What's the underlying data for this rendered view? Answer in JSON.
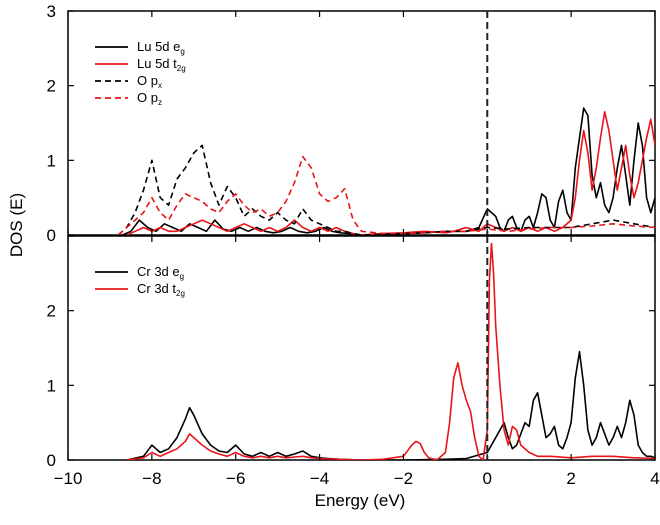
{
  "chart_data": {
    "type": "line",
    "xlabel": "Energy (eV)",
    "ylabel": "DOS (E)",
    "xlim": [
      -10,
      4
    ],
    "x_ticks": [
      "−10",
      "−8",
      "−6",
      "−4",
      "−2",
      "0",
      "2",
      "4"
    ],
    "fermi_level": 0,
    "grid": false,
    "panels": [
      {
        "name": "top",
        "ylim": [
          0,
          3
        ],
        "y_ticks": [
          "0",
          "1",
          "2",
          "3"
        ],
        "legend_position": "top-left",
        "series": [
          {
            "label_base": "Lu 5d e",
            "label_sub": "g",
            "color": "#000000",
            "dash": "solid",
            "x": [
              -8.7,
              -8.5,
              -8.3,
              -8.1,
              -7.9,
              -7.7,
              -7.5,
              -7.3,
              -7.1,
              -6.9,
              -6.7,
              -6.5,
              -6.3,
              -6.1,
              -5.9,
              -5.7,
              -5.5,
              -5.3,
              -5.1,
              -4.9,
              -4.7,
              -4.5,
              -4.3,
              -4.1,
              -3.9,
              -3.7,
              -3.5,
              -3.3,
              -3.1,
              -2.5,
              -2.0,
              -1.5,
              -1.0,
              -0.5,
              -0.2,
              0.0,
              0.1,
              0.2,
              0.3,
              0.4,
              0.5,
              0.6,
              0.7,
              0.8,
              0.9,
              1.0,
              1.1,
              1.2,
              1.3,
              1.4,
              1.5,
              1.6,
              1.7,
              1.8,
              1.9,
              2.0,
              2.1,
              2.2,
              2.3,
              2.4,
              2.5,
              2.6,
              2.7,
              2.8,
              2.9,
              3.0,
              3.1,
              3.2,
              3.3,
              3.4,
              3.5,
              3.6,
              3.7,
              3.8,
              3.9,
              4.0
            ],
            "y": [
              0.0,
              0.05,
              0.2,
              0.1,
              0.05,
              0.15,
              0.1,
              0.05,
              0.15,
              0.1,
              0.05,
              0.2,
              0.08,
              0.05,
              0.1,
              0.05,
              0.1,
              0.05,
              0.03,
              0.05,
              0.1,
              0.05,
              0.03,
              0.05,
              0.1,
              0.05,
              0.03,
              0.02,
              0.0,
              0.01,
              0.02,
              0.03,
              0.05,
              0.05,
              0.1,
              0.35,
              0.3,
              0.25,
              0.1,
              0.05,
              0.2,
              0.25,
              0.1,
              0.05,
              0.2,
              0.25,
              0.1,
              0.3,
              0.55,
              0.5,
              0.2,
              0.1,
              0.45,
              0.6,
              0.3,
              0.2,
              0.9,
              1.3,
              1.7,
              1.6,
              0.8,
              0.5,
              0.7,
              0.4,
              0.3,
              0.5,
              0.9,
              1.2,
              0.8,
              0.4,
              1.0,
              1.5,
              1.2,
              0.5,
              0.3,
              0.5
            ]
          },
          {
            "label_base": "Lu 5d t",
            "label_sub": "2g",
            "color": "#e8141a",
            "dash": "solid",
            "x": [
              -8.6,
              -8.4,
              -8.2,
              -8.0,
              -7.8,
              -7.6,
              -7.4,
              -7.2,
              -7.0,
              -6.8,
              -6.6,
              -6.4,
              -6.2,
              -6.0,
              -5.8,
              -5.6,
              -5.4,
              -5.2,
              -5.0,
              -4.8,
              -4.6,
              -4.4,
              -4.2,
              -4.0,
              -3.8,
              -3.6,
              -3.4,
              -3.2,
              -3.0,
              -2.5,
              -2.0,
              -1.5,
              -1.0,
              -0.8,
              -0.5,
              -0.2,
              0.0,
              0.2,
              0.4,
              0.6,
              0.8,
              1.0,
              1.2,
              1.4,
              1.6,
              1.8,
              2.0,
              2.1,
              2.2,
              2.3,
              2.4,
              2.5,
              2.6,
              2.7,
              2.8,
              2.9,
              3.0,
              3.1,
              3.2,
              3.3,
              3.4,
              3.5,
              3.6,
              3.7,
              3.8,
              3.9,
              4.0
            ],
            "y": [
              0.0,
              0.05,
              0.1,
              0.05,
              0.1,
              0.05,
              0.05,
              0.1,
              0.15,
              0.2,
              0.15,
              0.1,
              0.05,
              0.1,
              0.15,
              0.1,
              0.05,
              0.1,
              0.05,
              0.1,
              0.2,
              0.1,
              0.05,
              0.1,
              0.05,
              0.1,
              0.05,
              0.02,
              0.0,
              0.02,
              0.03,
              0.05,
              0.03,
              0.05,
              0.1,
              0.05,
              0.15,
              0.1,
              0.05,
              0.1,
              0.05,
              0.1,
              0.05,
              0.1,
              0.05,
              0.1,
              0.2,
              0.5,
              1.0,
              1.4,
              1.1,
              0.6,
              0.9,
              1.3,
              1.65,
              1.4,
              1.0,
              0.6,
              0.9,
              1.2,
              0.8,
              0.5,
              0.7,
              1.0,
              1.3,
              1.55,
              1.2
            ]
          },
          {
            "label_base": "O p",
            "label_sub": "x",
            "color": "#000000",
            "dash": "dashed",
            "x": [
              -8.8,
              -8.6,
              -8.4,
              -8.2,
              -8.0,
              -7.8,
              -7.6,
              -7.4,
              -7.2,
              -7.0,
              -6.8,
              -6.6,
              -6.4,
              -6.2,
              -6.0,
              -5.8,
              -5.6,
              -5.4,
              -5.2,
              -5.0,
              -4.8,
              -4.6,
              -4.4,
              -4.2,
              -4.0,
              -3.8,
              -3.6,
              -3.4,
              -3.2,
              -3.0,
              -2.5,
              -2.0,
              -1.5,
              -1.0,
              -0.5,
              0.0,
              0.5,
              1.0,
              1.5,
              2.0,
              2.5,
              3.0,
              3.5,
              4.0
            ],
            "y": [
              0.0,
              0.1,
              0.3,
              0.6,
              1.0,
              0.5,
              0.4,
              0.75,
              0.9,
              1.1,
              1.2,
              0.7,
              0.4,
              0.65,
              0.5,
              0.25,
              0.35,
              0.25,
              0.2,
              0.3,
              0.2,
              0.15,
              0.35,
              0.2,
              0.15,
              0.1,
              0.05,
              0.05,
              0.02,
              0.0,
              0.01,
              0.02,
              0.03,
              0.05,
              0.05,
              0.1,
              0.08,
              0.1,
              0.1,
              0.1,
              0.15,
              0.2,
              0.15,
              0.1
            ]
          },
          {
            "label_base": "O p",
            "label_sub": "z",
            "color": "#e8141a",
            "dash": "dashed",
            "x": [
              -8.8,
              -8.6,
              -8.4,
              -8.2,
              -8.0,
              -7.8,
              -7.6,
              -7.4,
              -7.2,
              -7.0,
              -6.8,
              -6.6,
              -6.4,
              -6.2,
              -6.0,
              -5.8,
              -5.6,
              -5.4,
              -5.2,
              -5.0,
              -4.8,
              -4.6,
              -4.4,
              -4.2,
              -4.0,
              -3.8,
              -3.6,
              -3.4,
              -3.2,
              -3.0,
              -2.5,
              -2.0,
              -1.5,
              -1.0,
              -0.5,
              0.0,
              0.5,
              1.0,
              1.5,
              2.0,
              2.5,
              3.0,
              3.5,
              4.0
            ],
            "y": [
              0.0,
              0.1,
              0.2,
              0.3,
              0.5,
              0.3,
              0.2,
              0.4,
              0.55,
              0.5,
              0.45,
              0.35,
              0.3,
              0.45,
              0.55,
              0.4,
              0.3,
              0.35,
              0.25,
              0.3,
              0.45,
              0.7,
              1.05,
              0.9,
              0.55,
              0.45,
              0.5,
              0.62,
              0.2,
              0.05,
              0.02,
              0.02,
              0.03,
              0.05,
              0.05,
              0.08,
              0.05,
              0.08,
              0.1,
              0.1,
              0.12,
              0.15,
              0.12,
              0.1
            ]
          }
        ]
      },
      {
        "name": "bottom",
        "ylim": [
          0,
          3
        ],
        "y_ticks": [
          "0",
          "1",
          "2",
          "3"
        ],
        "y_ticks_shown": [
          "0",
          "1",
          "2"
        ],
        "legend_position": "top-left",
        "series": [
          {
            "label_base": "Cr 3d e",
            "label_sub": "g",
            "color": "#000000",
            "dash": "solid",
            "x": [
              -8.6,
              -8.2,
              -8.0,
              -7.8,
              -7.6,
              -7.4,
              -7.2,
              -7.1,
              -7.0,
              -6.8,
              -6.6,
              -6.4,
              -6.2,
              -6.0,
              -5.8,
              -5.6,
              -5.4,
              -5.2,
              -5.0,
              -4.8,
              -4.6,
              -4.4,
              -4.2,
              -4.0,
              -3.8,
              -3.5,
              -3.0,
              -2.0,
              -1.0,
              -0.5,
              0.0,
              0.2,
              0.4,
              0.5,
              0.6,
              0.7,
              0.8,
              0.9,
              1.0,
              1.1,
              1.2,
              1.3,
              1.4,
              1.5,
              1.6,
              1.7,
              1.8,
              1.9,
              2.0,
              2.1,
              2.2,
              2.3,
              2.4,
              2.5,
              2.6,
              2.7,
              2.8,
              2.9,
              3.0,
              3.1,
              3.2,
              3.3,
              3.4,
              3.5,
              3.6,
              3.7,
              3.8,
              3.9,
              4.0
            ],
            "y": [
              0.0,
              0.05,
              0.2,
              0.1,
              0.15,
              0.3,
              0.55,
              0.7,
              0.6,
              0.35,
              0.2,
              0.12,
              0.1,
              0.2,
              0.08,
              0.05,
              0.1,
              0.05,
              0.1,
              0.05,
              0.08,
              0.12,
              0.05,
              0.03,
              0.02,
              0.01,
              0.0,
              0.0,
              0.01,
              0.02,
              0.1,
              0.3,
              0.5,
              0.3,
              0.15,
              0.2,
              0.35,
              0.5,
              0.45,
              0.8,
              0.9,
              0.6,
              0.3,
              0.35,
              0.45,
              0.2,
              0.15,
              0.3,
              0.5,
              1.1,
              1.45,
              1.0,
              0.4,
              0.2,
              0.3,
              0.5,
              0.35,
              0.2,
              0.3,
              0.45,
              0.3,
              0.5,
              0.8,
              0.6,
              0.2,
              0.1,
              0.05,
              0.05,
              0.03
            ]
          },
          {
            "label_base": "Cr 3d t",
            "label_sub": "2g",
            "color": "#e8141a",
            "dash": "solid",
            "x": [
              -8.6,
              -8.2,
              -8.0,
              -7.8,
              -7.6,
              -7.4,
              -7.2,
              -7.1,
              -7.0,
              -6.8,
              -6.6,
              -6.4,
              -6.2,
              -6.0,
              -5.8,
              -5.6,
              -5.4,
              -5.2,
              -5.0,
              -4.8,
              -4.6,
              -4.4,
              -4.2,
              -4.0,
              -3.5,
              -3.0,
              -2.5,
              -2.0,
              -1.8,
              -1.7,
              -1.6,
              -1.5,
              -1.4,
              -1.2,
              -1.0,
              -0.9,
              -0.8,
              -0.7,
              -0.6,
              -0.5,
              -0.4,
              -0.3,
              -0.2,
              -0.1,
              0.0,
              0.05,
              0.1,
              0.15,
              0.2,
              0.3,
              0.4,
              0.5,
              0.6,
              0.7,
              0.8,
              1.0,
              1.2,
              1.5,
              2.0,
              2.5,
              3.0,
              3.5,
              4.0
            ],
            "y": [
              0.0,
              0.03,
              0.1,
              0.05,
              0.1,
              0.15,
              0.25,
              0.35,
              0.3,
              0.2,
              0.12,
              0.08,
              0.05,
              0.1,
              0.05,
              0.03,
              0.05,
              0.03,
              0.05,
              0.03,
              0.04,
              0.05,
              0.03,
              0.02,
              0.01,
              0.0,
              0.01,
              0.05,
              0.2,
              0.25,
              0.22,
              0.1,
              0.03,
              0.0,
              0.1,
              0.5,
              1.1,
              1.3,
              1.0,
              0.8,
              0.65,
              0.3,
              0.05,
              0.0,
              0.4,
              2.4,
              2.9,
              2.5,
              1.8,
              1.0,
              0.4,
              0.2,
              0.45,
              0.4,
              0.2,
              0.1,
              0.05,
              0.05,
              0.03,
              0.05,
              0.05,
              0.03,
              0.02
            ]
          }
        ]
      }
    ]
  }
}
